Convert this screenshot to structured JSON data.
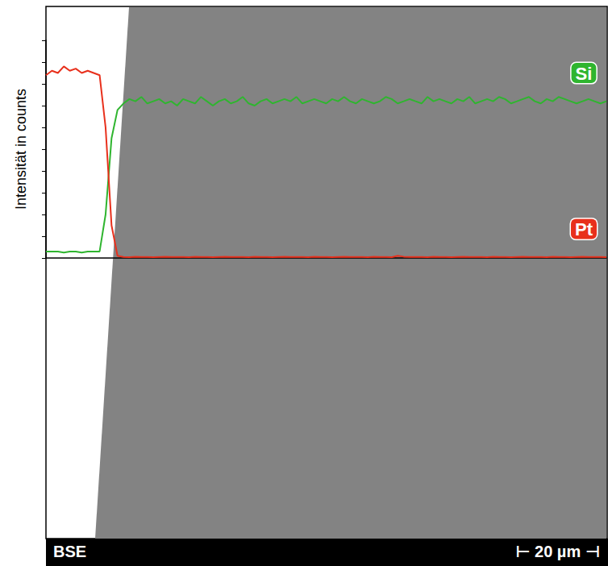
{
  "chart_data": {
    "type": "line",
    "ylabel": "Intensität in counts",
    "image_label": "BSE",
    "scale_bar": "⊢ 20 µm ⊣",
    "x": [
      0,
      1,
      2,
      3,
      4,
      5,
      6,
      7,
      8,
      9,
      10,
      11,
      12,
      13,
      14,
      15,
      16,
      17,
      18,
      19,
      20,
      21,
      22,
      23,
      24,
      25,
      26,
      27,
      28,
      29,
      30,
      31,
      32,
      33,
      34,
      35,
      36,
      37,
      38,
      39,
      40,
      41,
      42,
      43,
      44,
      45,
      46,
      47,
      48,
      49,
      50,
      51,
      52,
      53,
      54,
      55,
      56,
      57,
      58,
      59,
      60,
      61,
      62,
      63,
      64,
      65,
      66,
      67,
      68,
      69,
      70,
      71,
      72,
      73,
      74,
      75,
      76,
      77,
      78,
      79,
      80,
      81,
      82,
      83,
      84,
      85,
      86,
      87,
      88,
      89,
      90,
      91,
      92,
      93,
      94
    ],
    "xlim": [
      0,
      94
    ],
    "ylim": [
      0,
      100
    ],
    "yticks": [
      0,
      10,
      20,
      30,
      40,
      50,
      60,
      70,
      80,
      90,
      100
    ],
    "tick_labels": false,
    "grid": false,
    "series": [
      {
        "name": "Si",
        "color": "#2fb52f",
        "values": [
          3,
          3,
          3,
          2.5,
          3,
          3,
          2.5,
          3,
          3,
          3,
          20,
          55,
          68,
          71,
          73,
          72,
          74,
          71,
          72,
          73,
          71,
          72,
          70,
          73,
          72,
          71,
          74,
          72,
          70,
          72,
          73,
          71,
          72,
          74,
          71,
          70,
          72,
          73,
          71,
          72,
          73,
          72,
          74,
          71,
          72,
          73,
          72,
          71,
          73,
          72,
          74,
          72,
          71,
          73,
          72,
          71,
          72,
          74,
          73,
          71,
          72,
          73,
          72,
          71,
          74,
          72,
          73,
          72,
          71,
          73,
          72,
          74,
          71,
          72,
          73,
          72,
          74,
          73,
          71,
          72,
          73,
          74,
          72,
          71,
          73,
          72,
          74,
          73,
          72,
          71,
          72,
          73,
          72,
          71,
          72
        ]
      },
      {
        "name": "Pt",
        "color": "#e8301c",
        "values": [
          84,
          86,
          85,
          88,
          86,
          87,
          85,
          86,
          85,
          84,
          60,
          15,
          1,
          0.5,
          0.4,
          0.6,
          0.5,
          0.5,
          0.4,
          0.5,
          0.6,
          0.5,
          0.5,
          0.5,
          0.4,
          0.6,
          0.5,
          0.5,
          0.4,
          0.5,
          0.6,
          0.5,
          0.5,
          0.5,
          0.4,
          0.6,
          0.5,
          0.5,
          0.4,
          0.5,
          0.6,
          0.5,
          0.5,
          0.5,
          0.4,
          0.6,
          0.5,
          0.5,
          0.4,
          0.5,
          0.6,
          0.5,
          0.5,
          0.5,
          0.4,
          0.6,
          0.5,
          0.5,
          0.4,
          1,
          0.6,
          0.5,
          0.5,
          0.5,
          0.4,
          0.6,
          0.5,
          0.5,
          0.4,
          0.5,
          0.6,
          0.5,
          0.5,
          0.5,
          0.4,
          0.6,
          0.5,
          0.5,
          0.4,
          0.5,
          0.6,
          0.5,
          0.5,
          0.5,
          0.4,
          0.6,
          0.5,
          0.5,
          0.4,
          0.5,
          0.6,
          0.5,
          0.5,
          0.5,
          0.4
        ]
      }
    ]
  }
}
